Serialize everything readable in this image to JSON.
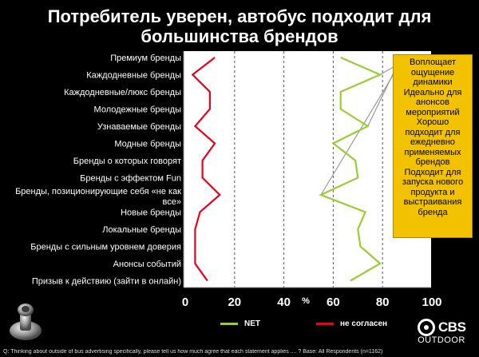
{
  "title_lines": [
    "Потребитель уверен, автобус подходит для",
    "большинства брендов"
  ],
  "chart_data": {
    "type": "line",
    "orientation": "horizontal",
    "categories": [
      "Премиум бренды",
      "Каждодневные бренды",
      "Каждодневные/люкс бренды",
      "Молодежные бренды",
      "Узнаваемые бренды",
      "Модные бренды",
      "Бренды о которых говорят",
      "Бренды с эффектом Fun",
      "Бренды, позиционирующие себя «не как все»",
      "Новые бренды",
      "Локальные бренды",
      "Бренды с сильным уровнем доверия",
      "Анонсы событий",
      "Призыв к действию (зайти в онлайн)"
    ],
    "series": [
      {
        "name": "NET",
        "color": "#9acd32",
        "values": [
          63,
          79,
          63,
          63,
          74,
          60,
          69,
          70,
          55,
          73,
          70,
          71,
          79,
          67
        ]
      },
      {
        "name": "не согласен",
        "color": "#e8001c",
        "values": [
          12,
          3,
          10,
          10,
          4,
          12,
          7,
          7,
          14,
          6,
          4,
          4,
          4,
          9
        ]
      }
    ],
    "xlim": [
      0,
      100
    ],
    "xticks": [
      0,
      20,
      40,
      60,
      80,
      100
    ],
    "xunit": "%",
    "gridlines": "dashed-vertical"
  },
  "callout": {
    "lines": [
      "Воплощает",
      "ощущение",
      "динамики",
      "Идеально для",
      "анонсов",
      "мероприятий",
      "Хорошо",
      "подходит для",
      "ежедневно",
      "применяемых",
      "брендов",
      "Подходит для",
      "запуска нового",
      "продукта и",
      "выстраивания",
      "бренда"
    ],
    "color": "#f2c200"
  },
  "logo": {
    "brand": "CBS",
    "sub": "OUTDOOR"
  },
  "footnote": "Q: Thinking about outside of bus advertising specifically, please tell us how much agree that each statement applies .... ? Base: All Respondents (n=1162)",
  "colors": {
    "background": "#000000",
    "plot_background": "#ffffff"
  }
}
